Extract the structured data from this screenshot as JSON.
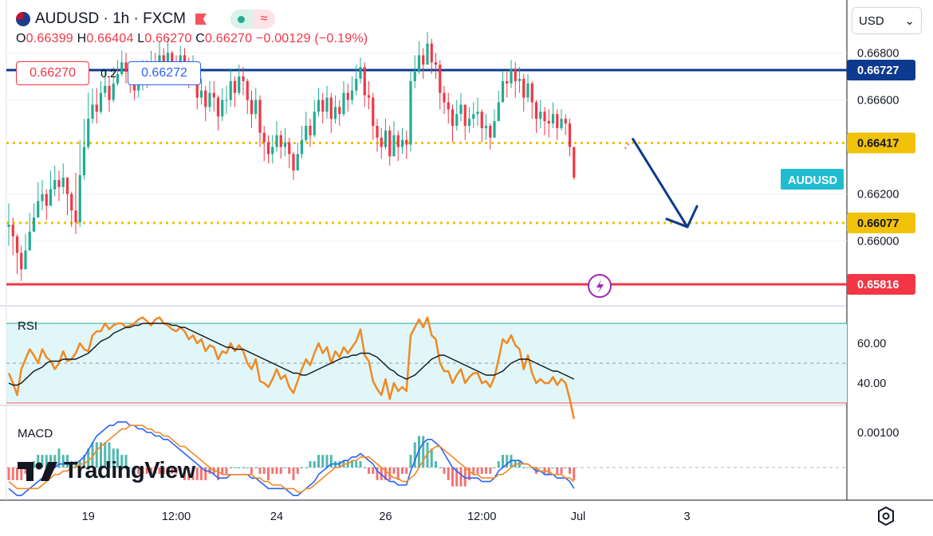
{
  "header": {
    "symbol": "AUDUSD",
    "timeframe": "1h",
    "exchange": "FXCM",
    "title": "AUDUSD · 1h · FXCM",
    "ohlc": {
      "o_label": "O",
      "o": "0.66399",
      "h_label": "H",
      "h": "0.66404",
      "l_label": "L",
      "l": "0.66270",
      "c_label": "C",
      "c": "0.66270",
      "change": "−0.00129 (−0.19%)"
    },
    "sell_price": "0.66270",
    "spread": "0.2",
    "buy_price": "0.66272"
  },
  "currency_select": {
    "value": "USD"
  },
  "watermark": "TradingView",
  "colors": {
    "up": "#22ab94",
    "down": "#f23645",
    "blue_line": "#0d3a8e",
    "yellow_line": "#f0c20a",
    "red_line": "#f23645",
    "rsi_line": "#f08a24",
    "rsi_ma": "#131722",
    "rsi_band": "#e0f6f8",
    "macd_line": "#2962ff",
    "signal_line": "#f08a24",
    "symbol_badge": "#1fbcd2",
    "arrow": "#0d3a8e"
  },
  "chart_data": [
    {
      "type": "candlestick",
      "title": "AUDUSD · 1h · FXCM",
      "ylim": [
        0.6567,
        0.6689
      ],
      "y_ticks": [
        "0.66800",
        "0.66600",
        "0.66200",
        "0.66000"
      ],
      "x_ticks": [
        "19",
        "12:00",
        "24",
        "26",
        "12:00",
        "Jul",
        "3"
      ],
      "x_tick_index": [
        19,
        40,
        64,
        90,
        113,
        136,
        162
      ],
      "levels": [
        {
          "value": 0.66727,
          "label": "0.66727",
          "style": "solid",
          "color": "#0d3a8e"
        },
        {
          "value": 0.66417,
          "label": "0.66417",
          "style": "dotted",
          "color": "#f0c20a"
        },
        {
          "value": 0.66077,
          "label": "0.66077",
          "style": "dotted",
          "color": "#f0c20a"
        },
        {
          "value": 0.65816,
          "label": "0.65816",
          "style": "solid",
          "color": "#f23645"
        }
      ],
      "current_price_badge": {
        "text": "AUDUSD",
        "value": 0.6627
      },
      "close": [
        0.6607,
        0.6602,
        0.6595,
        0.6588,
        0.6596,
        0.6604,
        0.661,
        0.6617,
        0.662,
        0.6615,
        0.6622,
        0.6626,
        0.6623,
        0.6627,
        0.662,
        0.6613,
        0.6608,
        0.6628,
        0.664,
        0.6652,
        0.6658,
        0.6655,
        0.6663,
        0.6666,
        0.666,
        0.6667,
        0.6671,
        0.6676,
        0.6672,
        0.6669,
        0.6664,
        0.6667,
        0.6671,
        0.667,
        0.6676,
        0.6673,
        0.6679,
        0.6676,
        0.668,
        0.6674,
        0.6673,
        0.6679,
        0.6676,
        0.6671,
        0.6674,
        0.6661,
        0.6664,
        0.6657,
        0.6663,
        0.6661,
        0.6653,
        0.666,
        0.666,
        0.6668,
        0.6663,
        0.667,
        0.6668,
        0.666,
        0.6654,
        0.666,
        0.6646,
        0.6642,
        0.6637,
        0.664,
        0.6645,
        0.664,
        0.6642,
        0.6637,
        0.663,
        0.6637,
        0.6643,
        0.6649,
        0.6645,
        0.6655,
        0.666,
        0.6655,
        0.6661,
        0.6652,
        0.6657,
        0.6654,
        0.6663,
        0.666,
        0.6664,
        0.6669,
        0.6674,
        0.6662,
        0.6661,
        0.6649,
        0.6644,
        0.664,
        0.6647,
        0.6636,
        0.6645,
        0.664,
        0.6643,
        0.6641,
        0.6668,
        0.6672,
        0.6679,
        0.6675,
        0.6684,
        0.6676,
        0.6675,
        0.6663,
        0.6659,
        0.6656,
        0.6649,
        0.6654,
        0.6658,
        0.6649,
        0.6652,
        0.6654,
        0.6655,
        0.6648,
        0.6649,
        0.6644,
        0.6651,
        0.6659,
        0.6668,
        0.6667,
        0.6673,
        0.6668,
        0.6669,
        0.6661,
        0.6667,
        0.6659,
        0.6652,
        0.6655,
        0.6651,
        0.665,
        0.6654,
        0.6648,
        0.6652,
        0.665,
        0.664,
        0.6627
      ],
      "open_first": 0.6606,
      "high_wick": [
        0.6616,
        0.661,
        0.6603,
        0.6598,
        0.6603,
        0.6612,
        0.6616,
        0.6625,
        0.6626,
        0.6622,
        0.663,
        0.6632,
        0.663,
        0.6633,
        0.6627,
        0.6621,
        0.6629,
        0.6643,
        0.6652,
        0.6663,
        0.6665,
        0.6665,
        0.6668,
        0.6672,
        0.667,
        0.6674,
        0.6677,
        0.6681,
        0.668,
        0.6676,
        0.6672,
        0.6673,
        0.6677,
        0.6677,
        0.6681,
        0.668,
        0.6685,
        0.6682,
        0.6686,
        0.6681,
        0.6679,
        0.6683,
        0.6682,
        0.6678,
        0.6679,
        0.6676,
        0.6669,
        0.6666,
        0.6668,
        0.6668,
        0.6662,
        0.6665,
        0.6666,
        0.6673,
        0.667,
        0.6675,
        0.6674,
        0.6669,
        0.6664,
        0.6665,
        0.6662,
        0.6649,
        0.6645,
        0.6645,
        0.6651,
        0.6647,
        0.6648,
        0.6644,
        0.6638,
        0.6642,
        0.6649,
        0.6655,
        0.6652,
        0.666,
        0.6665,
        0.6663,
        0.6666,
        0.6663,
        0.6662,
        0.666,
        0.6668,
        0.6667,
        0.667,
        0.6675,
        0.6678,
        0.6676,
        0.6668,
        0.6663,
        0.6652,
        0.6648,
        0.6652,
        0.6649,
        0.6651,
        0.6647,
        0.6648,
        0.6647,
        0.6672,
        0.6679,
        0.6685,
        0.6682,
        0.6689,
        0.6686,
        0.668,
        0.6677,
        0.6666,
        0.6663,
        0.6658,
        0.666,
        0.6663,
        0.6657,
        0.6657,
        0.6659,
        0.6661,
        0.6656,
        0.6654,
        0.665,
        0.6656,
        0.6664,
        0.6672,
        0.6672,
        0.6677,
        0.6676,
        0.6674,
        0.6671,
        0.6671,
        0.6668,
        0.666,
        0.666,
        0.6657,
        0.6656,
        0.6659,
        0.6656,
        0.6656,
        0.6654,
        0.6652,
        0.664
      ],
      "low_wick": [
        0.6598,
        0.6594,
        0.6586,
        0.6583,
        0.659,
        0.6598,
        0.6604,
        0.6611,
        0.6613,
        0.6609,
        0.6616,
        0.6619,
        0.6617,
        0.662,
        0.6611,
        0.6606,
        0.6603,
        0.6606,
        0.6626,
        0.6639,
        0.665,
        0.665,
        0.6654,
        0.6661,
        0.6655,
        0.6659,
        0.6666,
        0.667,
        0.6667,
        0.6663,
        0.666,
        0.6661,
        0.6664,
        0.6665,
        0.6669,
        0.6668,
        0.6672,
        0.667,
        0.6674,
        0.6668,
        0.6667,
        0.6672,
        0.667,
        0.6665,
        0.6667,
        0.6656,
        0.6658,
        0.6651,
        0.6655,
        0.6655,
        0.6647,
        0.6651,
        0.6654,
        0.6657,
        0.6657,
        0.6662,
        0.6662,
        0.6654,
        0.6648,
        0.6652,
        0.664,
        0.6634,
        0.6633,
        0.6633,
        0.6638,
        0.6635,
        0.6636,
        0.6631,
        0.6626,
        0.663,
        0.6635,
        0.6642,
        0.664,
        0.6644,
        0.6653,
        0.665,
        0.6652,
        0.6646,
        0.665,
        0.6649,
        0.6653,
        0.6655,
        0.6658,
        0.6662,
        0.6667,
        0.6657,
        0.6656,
        0.6643,
        0.6638,
        0.6635,
        0.6639,
        0.6632,
        0.6637,
        0.6634,
        0.6637,
        0.6635,
        0.6638,
        0.6665,
        0.6671,
        0.6669,
        0.6677,
        0.6671,
        0.6669,
        0.6656,
        0.6654,
        0.665,
        0.6642,
        0.6647,
        0.6651,
        0.6643,
        0.6646,
        0.6648,
        0.6649,
        0.6642,
        0.6643,
        0.6639,
        0.6644,
        0.6652,
        0.666,
        0.6661,
        0.6665,
        0.6661,
        0.6663,
        0.6655,
        0.6659,
        0.6652,
        0.6646,
        0.6648,
        0.6645,
        0.6644,
        0.6648,
        0.6643,
        0.6647,
        0.6645,
        0.6636,
        0.6626
      ],
      "projection": {
        "from_index": 143,
        "from_value": 0.6642,
        "to_index": 156,
        "to_value": 0.6606,
        "color": "#0d3a8e"
      }
    },
    {
      "type": "line",
      "title": "RSI",
      "ylim": [
        27,
        77
      ],
      "y_ticks": [
        "60.00",
        "40.00"
      ],
      "band": [
        30,
        70
      ],
      "mid": 50,
      "series": [
        {
          "name": "RSI",
          "values": [
            45,
            40,
            34,
            47,
            52,
            57,
            54,
            50,
            57,
            53,
            51,
            47,
            50,
            56,
            51,
            52,
            55,
            60,
            57,
            56,
            64,
            66,
            66,
            70,
            67,
            69,
            70,
            70,
            68,
            69,
            70,
            72,
            73,
            71,
            69,
            72,
            73,
            70,
            69,
            67,
            66,
            68,
            66,
            62,
            64,
            60,
            62,
            56,
            59,
            58,
            52,
            56,
            55,
            60,
            56,
            59,
            56,
            50,
            47,
            52,
            41,
            40,
            38,
            42,
            47,
            42,
            44,
            38,
            35,
            41,
            47,
            52,
            49,
            55,
            60,
            55,
            58,
            50,
            56,
            53,
            58,
            55,
            58,
            61,
            67,
            54,
            51,
            41,
            37,
            34,
            42,
            32,
            40,
            36,
            38,
            36,
            64,
            68,
            72,
            68,
            73,
            64,
            62,
            50,
            46,
            46,
            40,
            44,
            47,
            40,
            43,
            45,
            45,
            40,
            41,
            38,
            43,
            52,
            62,
            60,
            64,
            59,
            57,
            47,
            54,
            45,
            40,
            42,
            40,
            40,
            43,
            39,
            42,
            40,
            32,
            22
          ]
        },
        {
          "name": "RSI MA",
          "values": [
            40,
            39,
            39,
            40,
            42,
            44,
            46,
            47,
            48,
            50,
            51,
            51,
            51,
            52,
            52,
            52,
            52,
            53,
            54,
            55,
            57,
            59,
            61,
            62,
            63,
            65,
            66,
            67,
            68,
            68,
            69,
            69,
            70,
            70,
            70,
            70,
            70,
            70,
            70,
            69,
            69,
            68,
            68,
            67,
            66,
            65,
            64,
            63,
            62,
            61,
            60,
            59,
            58,
            58,
            57,
            57,
            57,
            56,
            55,
            54,
            53,
            52,
            51,
            50,
            49,
            48,
            47,
            46,
            45,
            45,
            44,
            44,
            45,
            46,
            47,
            48,
            49,
            50,
            51,
            52,
            53,
            53,
            54,
            54,
            55,
            55,
            55,
            54,
            53,
            51,
            49,
            47,
            46,
            44,
            43,
            42,
            43,
            44,
            46,
            48,
            50,
            52,
            53,
            54,
            54,
            53,
            52,
            51,
            50,
            49,
            48,
            47,
            46,
            45,
            44,
            44,
            44,
            45,
            46,
            48,
            50,
            51,
            52,
            52,
            52,
            51,
            50,
            49,
            48,
            47,
            46,
            46,
            45,
            44,
            43,
            42
          ]
        }
      ]
    },
    {
      "type": "bar",
      "title": "MACD",
      "ylim": [
        -0.0013,
        0.0014
      ],
      "y_ticks": [
        "0.00100"
      ],
      "series": [
        {
          "name": "MACD",
          "values": [
            -0.0006,
            -0.0007,
            -0.0008,
            -0.0008,
            -0.0007,
            -0.0006,
            -0.0005,
            -0.0004,
            -0.0003,
            -0.0002,
            -0.0001,
            0.0,
            0.0001,
            0.0001,
            0.0001,
            0.0001,
            0.0001,
            0.0002,
            0.0003,
            0.0005,
            0.0007,
            0.0009,
            0.001,
            0.0011,
            0.0012,
            0.0012,
            0.0013,
            0.0013,
            0.0013,
            0.0012,
            0.0012,
            0.0011,
            0.0011,
            0.001,
            0.001,
            0.0009,
            0.0009,
            0.0008,
            0.0008,
            0.0007,
            0.0006,
            0.0005,
            0.0004,
            0.0003,
            0.0002,
            0.0001,
            0.0,
            -0.0001,
            -0.0001,
            -0.0002,
            -0.0003,
            -0.0003,
            -0.0003,
            -0.0002,
            -0.0002,
            -0.0002,
            -0.0002,
            -0.0002,
            -0.0003,
            -0.0003,
            -0.0004,
            -0.0005,
            -0.0006,
            -0.0006,
            -0.0006,
            -0.0006,
            -0.0006,
            -0.0007,
            -0.0008,
            -0.0008,
            -0.0007,
            -0.0006,
            -0.0005,
            -0.0004,
            -0.0002,
            -0.0001,
            0.0,
            0.0001,
            0.0001,
            0.0001,
            0.0002,
            0.0002,
            0.0003,
            0.0003,
            0.0004,
            0.0003,
            0.0002,
            0.0001,
            -0.0001,
            -0.0002,
            -0.0003,
            -0.0004,
            -0.0004,
            -0.0005,
            -0.0005,
            -0.0005,
            -0.0001,
            0.0002,
            0.0005,
            0.0007,
            0.0008,
            0.0008,
            0.0007,
            0.0006,
            0.0004,
            0.0002,
            0.0,
            -0.0001,
            -0.0002,
            -0.0003,
            -0.0003,
            -0.0003,
            -0.0003,
            -0.0004,
            -0.0004,
            -0.0004,
            -0.0003,
            -0.0001,
            0.0,
            0.0001,
            0.0002,
            0.0002,
            0.0002,
            0.0001,
            0.0001,
            0.0,
            -0.0001,
            -0.0001,
            -0.0002,
            -0.0002,
            -0.0002,
            -0.0003,
            -0.0003,
            -0.0003,
            -0.0004,
            -0.0006
          ]
        },
        {
          "name": "Signal",
          "values": [
            -0.0004,
            -0.0005,
            -0.0006,
            -0.0006,
            -0.0006,
            -0.0006,
            -0.0006,
            -0.0006,
            -0.0005,
            -0.0004,
            -0.0003,
            -0.0002,
            -0.0002,
            -0.0001,
            -0.0001,
            0.0,
            0.0,
            0.0001,
            0.0001,
            0.0002,
            0.0003,
            0.0005,
            0.0006,
            0.0007,
            0.0008,
            0.0009,
            0.001,
            0.0011,
            0.0011,
            0.0012,
            0.0012,
            0.0012,
            0.0012,
            0.0011,
            0.0011,
            0.001,
            0.001,
            0.0009,
            0.0009,
            0.0008,
            0.0007,
            0.0006,
            0.0006,
            0.0005,
            0.0004,
            0.0003,
            0.0002,
            0.0001,
            0.0,
            -0.0001,
            -0.0001,
            -0.0002,
            -0.0002,
            -0.0002,
            -0.0002,
            -0.0002,
            -0.0002,
            -0.0002,
            -0.0002,
            -0.0003,
            -0.0003,
            -0.0004,
            -0.0004,
            -0.0005,
            -0.0005,
            -0.0005,
            -0.0006,
            -0.0006,
            -0.0006,
            -0.0007,
            -0.0007,
            -0.0006,
            -0.0006,
            -0.0005,
            -0.0004,
            -0.0003,
            -0.0002,
            -0.0001,
            0.0,
            0.0,
            0.0001,
            0.0001,
            0.0002,
            0.0002,
            0.0003,
            0.0003,
            0.0003,
            0.0002,
            0.0001,
            0.0,
            -0.0001,
            -0.0002,
            -0.0003,
            -0.0003,
            -0.0004,
            -0.0004,
            -0.0003,
            -0.0002,
            0.0,
            0.0002,
            0.0004,
            0.0005,
            0.0006,
            0.0006,
            0.0005,
            0.0004,
            0.0003,
            0.0002,
            0.0001,
            0.0,
            -0.0001,
            -0.0002,
            -0.0002,
            -0.0003,
            -0.0003,
            -0.0003,
            -0.0003,
            -0.0002,
            -0.0002,
            -0.0001,
            0.0,
            0.0001,
            0.0001,
            0.0001,
            0.0001,
            0.0,
            0.0,
            -0.0001,
            -0.0001,
            -0.0001,
            -0.0002,
            -0.0002,
            -0.0002,
            -0.0003,
            -0.0003,
            -0.0004
          ]
        }
      ]
    }
  ]
}
